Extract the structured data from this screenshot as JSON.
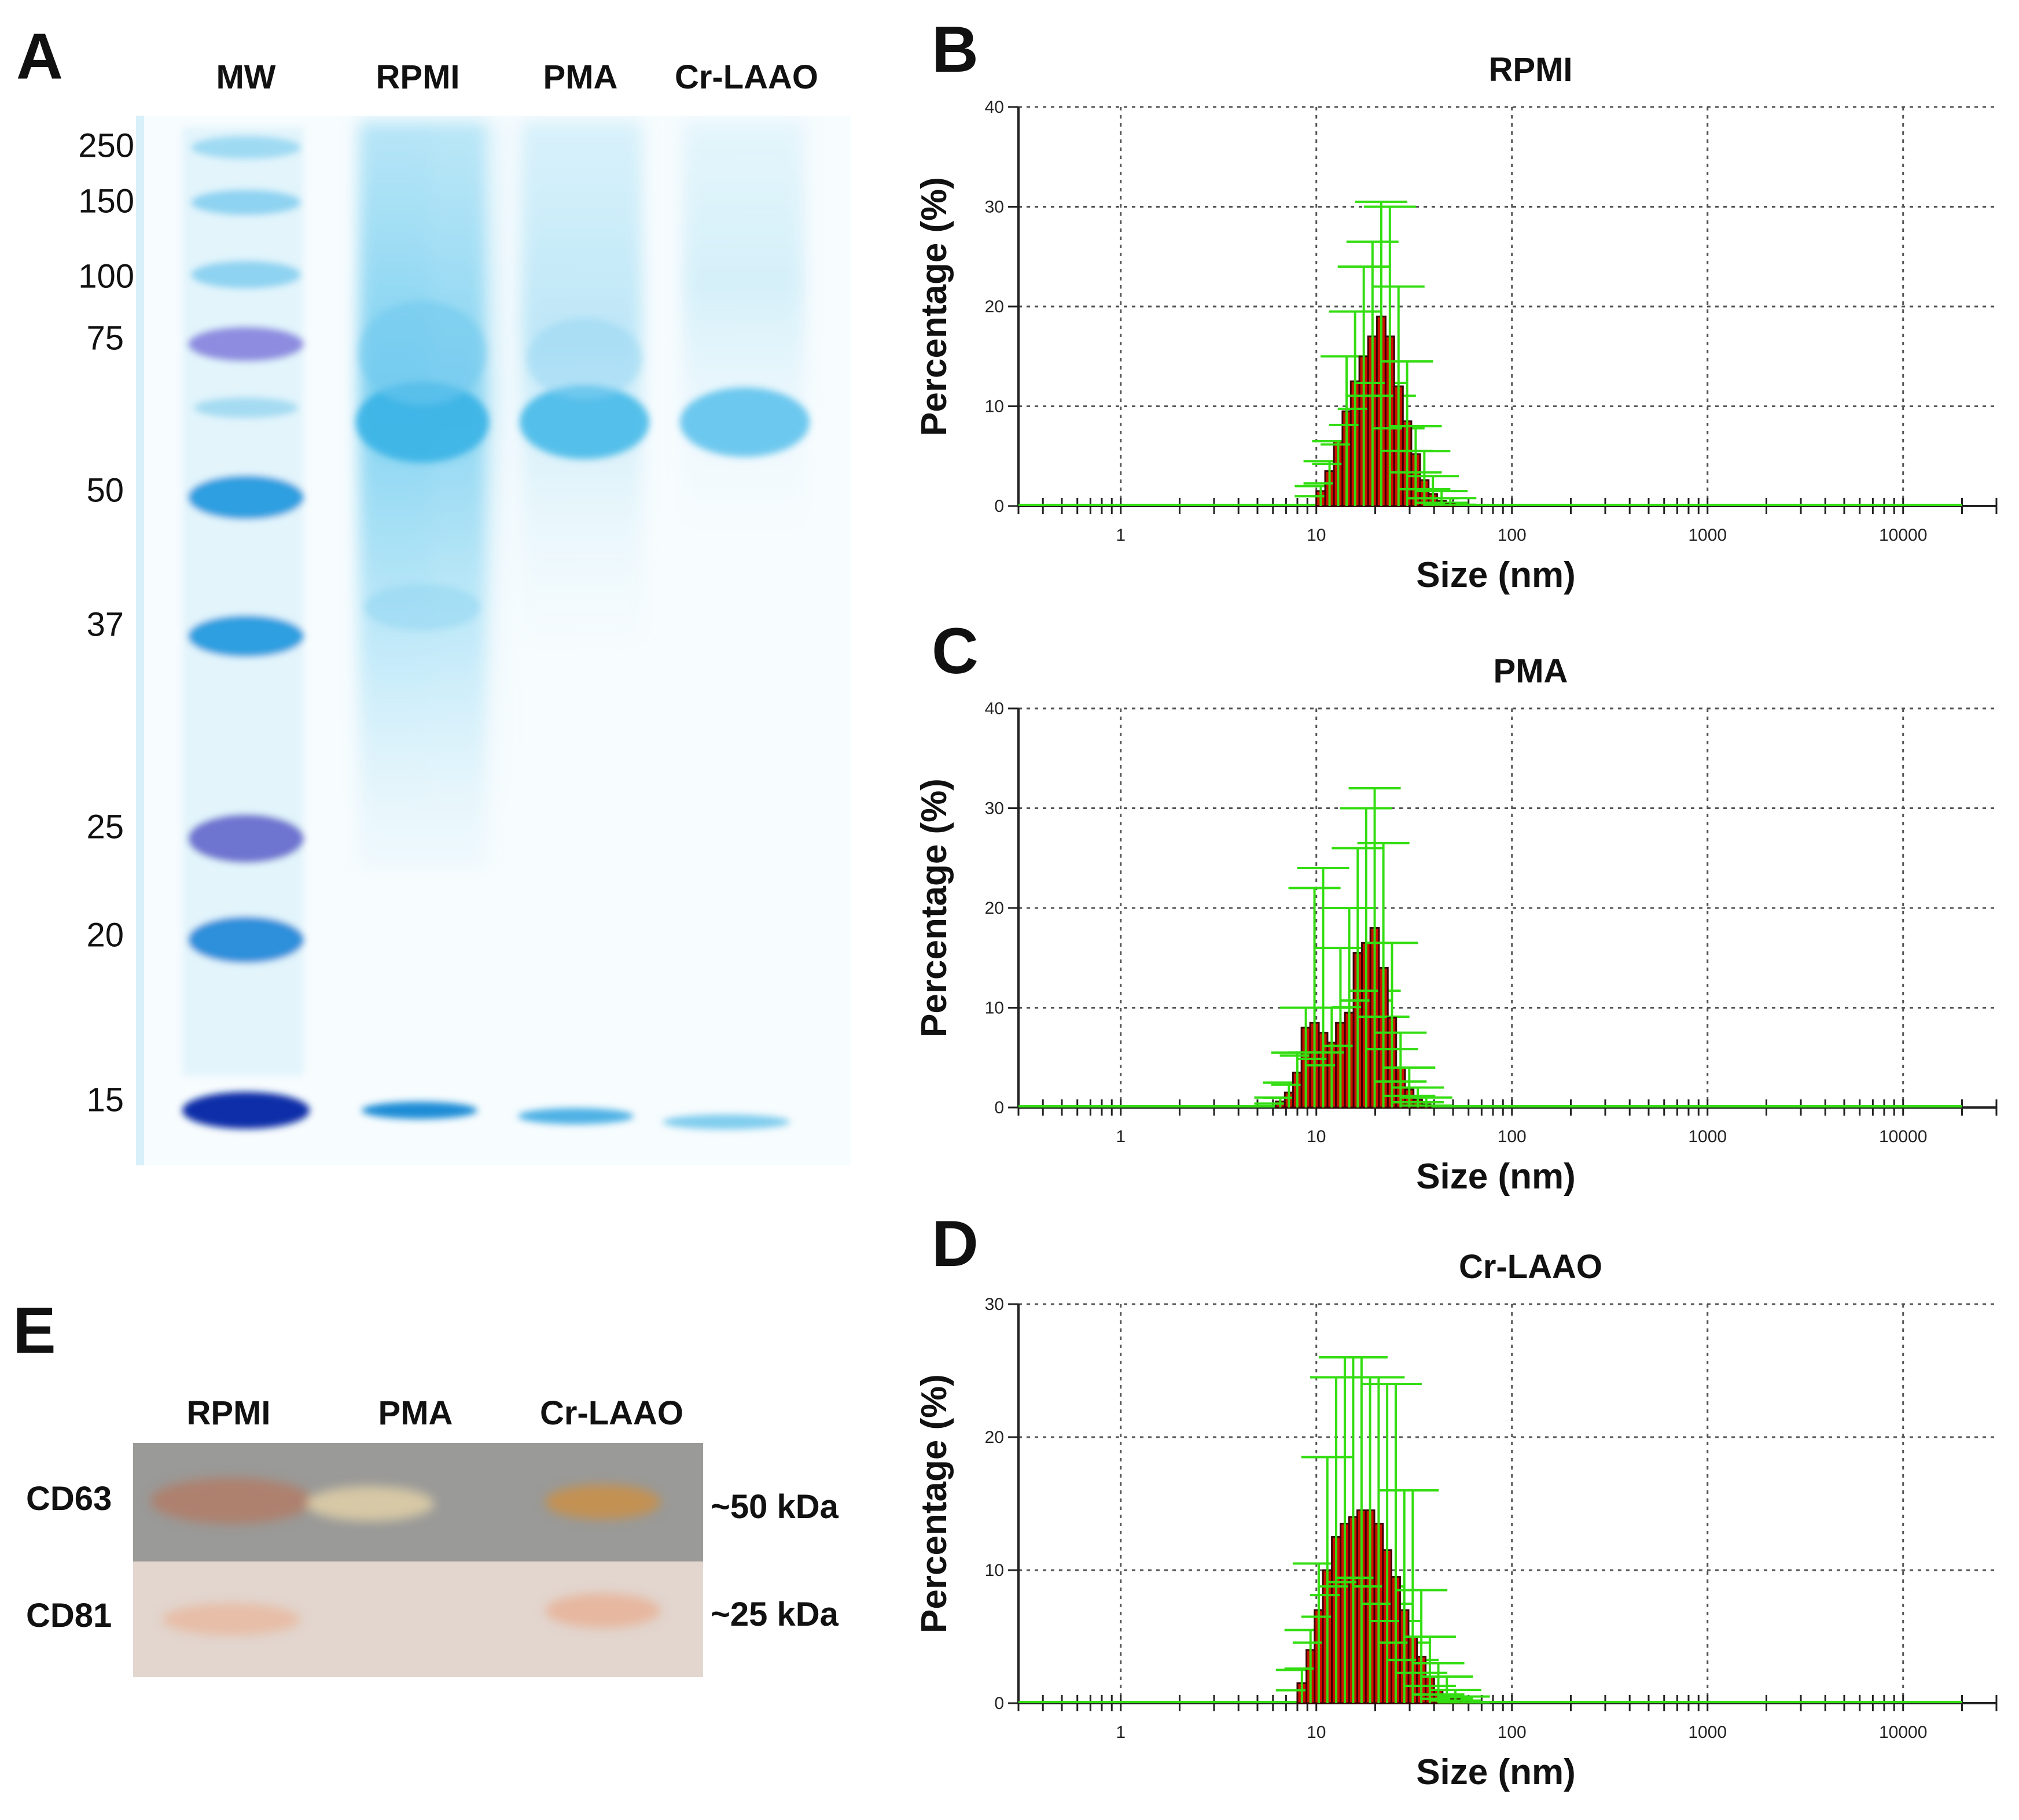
{
  "panels": {
    "a": "A",
    "b": "B",
    "c": "C",
    "d": "D",
    "e": "E"
  },
  "gel": {
    "lanes": [
      "MW",
      "RPMI",
      "PMA",
      "Cr-LAAO"
    ],
    "mw_markers": [
      "250",
      "150",
      "100",
      "75",
      "50",
      "37",
      "25",
      "20",
      "15"
    ]
  },
  "western": {
    "lanes": [
      "RPMI",
      "PMA",
      "Cr-LAAO"
    ],
    "rows": [
      {
        "label": "CD63",
        "size": "~50 kDa"
      },
      {
        "label": "CD81",
        "size": "~25 kDa"
      }
    ]
  },
  "colors": {
    "bar": "#cc1100",
    "bar_edge": "#3a0000",
    "error": "#33dd11",
    "grid": "#555555",
    "gel_blue": "#33b5e5"
  },
  "chart_data": [
    {
      "type": "bar",
      "title": "RPMI",
      "xlabel": "Size (nm)",
      "ylabel": "Percentage (%)",
      "xscale": "log",
      "xlim": [
        0.3,
        30000
      ],
      "ylim": [
        0,
        40
      ],
      "yticks": [
        "0",
        "10",
        "20",
        "30",
        "40"
      ],
      "xticks": [
        "1",
        "10",
        "100",
        "1000",
        "10000"
      ],
      "grid": true,
      "x": [
        10.0,
        11.1,
        12.3,
        13.6,
        15.0,
        16.6,
        18.4,
        20.4,
        22.6,
        25.0,
        27.7,
        30.6,
        33.9,
        37.5,
        41.5,
        46.0
      ],
      "values": [
        1.5,
        3.5,
        6.5,
        9.5,
        12.5,
        15,
        17,
        19,
        17,
        12,
        8.5,
        5.2,
        2.6,
        1.2,
        0.5,
        0.2
      ],
      "errors": [
        2,
        4.5,
        6.5,
        15,
        19.5,
        24,
        26.5,
        30.5,
        30,
        22,
        14.5,
        8,
        5.5,
        3,
        1.5,
        0.8
      ]
    },
    {
      "type": "bar",
      "title": "PMA",
      "xlabel": "Size (nm)",
      "ylabel": "Percentage (%)",
      "xscale": "log",
      "xlim": [
        0.3,
        30000
      ],
      "ylim": [
        0,
        40
      ],
      "yticks": [
        "0",
        "10",
        "20",
        "30",
        "40"
      ],
      "xticks": [
        "1",
        "10",
        "100",
        "1000",
        "10000"
      ],
      "grid": true,
      "x": [
        6.2,
        6.9,
        7.6,
        8.4,
        9.3,
        10.3,
        11.4,
        12.6,
        14.0,
        15.5,
        17.1,
        18.9,
        20.9,
        23.2,
        25.6,
        28.4,
        31.4,
        34.7
      ],
      "values": [
        0.6,
        1.5,
        3.5,
        8.0,
        8.5,
        7.5,
        6.5,
        8.5,
        9.5,
        15.5,
        16.5,
        18.0,
        14.0,
        9.0,
        4.0,
        1.8,
        0.8,
        0.3
      ],
      "errors": [
        1,
        2.5,
        5.5,
        10,
        22,
        24,
        10,
        16,
        20,
        26,
        30,
        32,
        26.5,
        16.5,
        7.5,
        4,
        2,
        1
      ]
    },
    {
      "type": "bar",
      "title": "Cr-LAAO",
      "xlabel": "Size (nm)",
      "ylabel": "Percentage (%)",
      "xscale": "log",
      "xlim": [
        0.3,
        30000
      ],
      "ylim": [
        0,
        30
      ],
      "yticks": [
        "0",
        "10",
        "20",
        "30"
      ],
      "xticks": [
        "1",
        "10",
        "100",
        "1000",
        "10000"
      ],
      "grid": true,
      "x": [
        8.0,
        8.9,
        9.8,
        10.8,
        12.0,
        13.3,
        14.7,
        16.2,
        17.9,
        19.8,
        21.9,
        24.2,
        26.8,
        29.6,
        32.7,
        36.2,
        40.0,
        44.2,
        48.9,
        54.0
      ],
      "values": [
        1.5,
        4.0,
        7.0,
        10.0,
        12.5,
        13.5,
        14.0,
        14.5,
        14.5,
        13.5,
        11.5,
        9.5,
        7.0,
        5.0,
        3.5,
        2.0,
        1.0,
        0.5,
        0.3,
        0.1
      ],
      "errors": [
        2.5,
        5.5,
        10.5,
        18.5,
        24.5,
        26,
        26,
        26,
        24.5,
        24.5,
        24,
        24,
        16,
        16,
        8.5,
        5,
        3,
        2,
        1,
        0.5
      ]
    }
  ]
}
